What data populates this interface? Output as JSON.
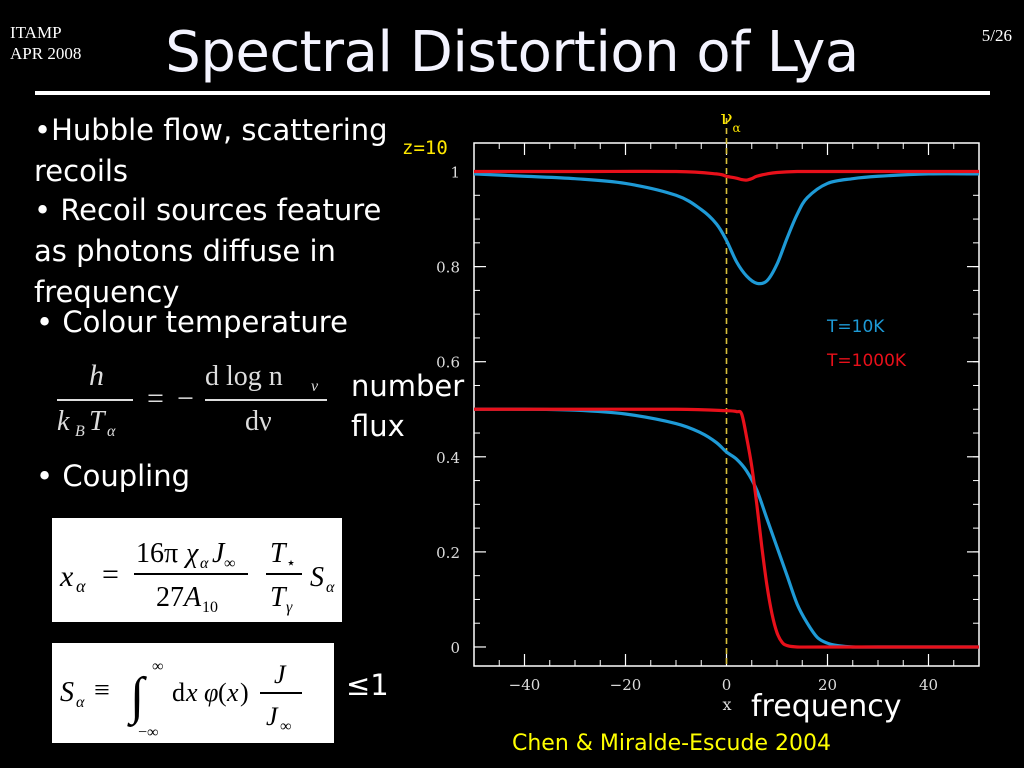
{
  "header": {
    "corner_line1": "ITAMP",
    "corner_line2": "APR 2008",
    "page_number": "5/26",
    "title": "Spectral Distortion of Lya"
  },
  "bullets": {
    "b1_line1": "•Hubble flow, scattering",
    "b1_line2": "recoils",
    "b2_line1": "• Recoil sources feature",
    "b2_line2": "as photons diffuse in",
    "b2_line3": "frequency",
    "b3": "• Colour temperature",
    "b4": "• Coupling"
  },
  "equations": {
    "colour_num": "h",
    "colour_den": "k",
    "colour_rhs_num": "d log n",
    "colour_rhs_den": "dν",
    "leq": "≤1"
  },
  "labels": {
    "number": "number",
    "flux": "flux",
    "frequency": "frequency",
    "citation": "Chen & Miralde-Escude 2004"
  },
  "chart_data": {
    "type": "line",
    "panel_label": "z=10",
    "top_label": "ν",
    "top_label_sub": "α",
    "xlabel": "x",
    "ylabel": "",
    "xlim": [
      -50,
      50
    ],
    "ylim": [
      -0.04,
      1.06
    ],
    "xticks": [
      -40,
      -20,
      0,
      20,
      40
    ],
    "yticks": [
      0,
      0.2,
      0.4,
      0.6,
      0.8,
      1
    ],
    "ytick_labels": [
      "0",
      "0.2",
      "0.4",
      "0.6",
      "0.8",
      "1"
    ],
    "xtick_labels": [
      "−40",
      "−20",
      "0",
      "20",
      "40"
    ],
    "vline_x": 0,
    "legend": [
      "T=10K",
      "T=1000K"
    ],
    "colors": {
      "T10K": "#1e9ad6",
      "T1000K": "#e8101a",
      "vline": "#d9c03a",
      "panel_label": "#ffe800"
    },
    "series": [
      {
        "name": "T=10K",
        "group": "upper",
        "x": [
          -50,
          -40,
          -30,
          -20,
          -10,
          -5,
          -2,
          0,
          2,
          4,
          6,
          8,
          10,
          12,
          14,
          16,
          20,
          25,
          30,
          40,
          50
        ],
        "y": [
          0.995,
          0.99,
          0.985,
          0.975,
          0.95,
          0.92,
          0.89,
          0.855,
          0.81,
          0.78,
          0.765,
          0.77,
          0.805,
          0.86,
          0.91,
          0.945,
          0.975,
          0.985,
          0.99,
          0.995,
          0.995
        ]
      },
      {
        "name": "T=1000K",
        "group": "upper",
        "x": [
          -50,
          -30,
          -10,
          -2,
          0,
          2,
          3,
          4,
          5,
          6,
          8,
          10,
          14,
          20,
          30,
          50
        ],
        "y": [
          1.0,
          1.0,
          1.0,
          0.995,
          0.99,
          0.986,
          0.983,
          0.982,
          0.985,
          0.99,
          0.995,
          0.998,
          1.0,
          1.0,
          1.0,
          1.0
        ]
      },
      {
        "name": "T=10K",
        "group": "lower",
        "x": [
          -50,
          -40,
          -30,
          -20,
          -10,
          -5,
          -2,
          0,
          2,
          4,
          6,
          8,
          10,
          12,
          14,
          16,
          18,
          20,
          22,
          25,
          30,
          50
        ],
        "y": [
          0.5,
          0.5,
          0.498,
          0.49,
          0.47,
          0.45,
          0.43,
          0.41,
          0.395,
          0.37,
          0.33,
          0.27,
          0.21,
          0.15,
          0.09,
          0.05,
          0.02,
          0.008,
          0.003,
          0.0,
          0.0,
          0.0
        ]
      },
      {
        "name": "T=1000K",
        "group": "lower",
        "x": [
          -50,
          -30,
          -10,
          0,
          2,
          3,
          4,
          5,
          6,
          7,
          8,
          9,
          10,
          11,
          12,
          14,
          20,
          50
        ],
        "y": [
          0.5,
          0.5,
          0.5,
          0.497,
          0.495,
          0.49,
          0.44,
          0.38,
          0.3,
          0.21,
          0.13,
          0.07,
          0.03,
          0.01,
          0.003,
          0.0,
          0.0,
          0.0
        ]
      }
    ]
  }
}
